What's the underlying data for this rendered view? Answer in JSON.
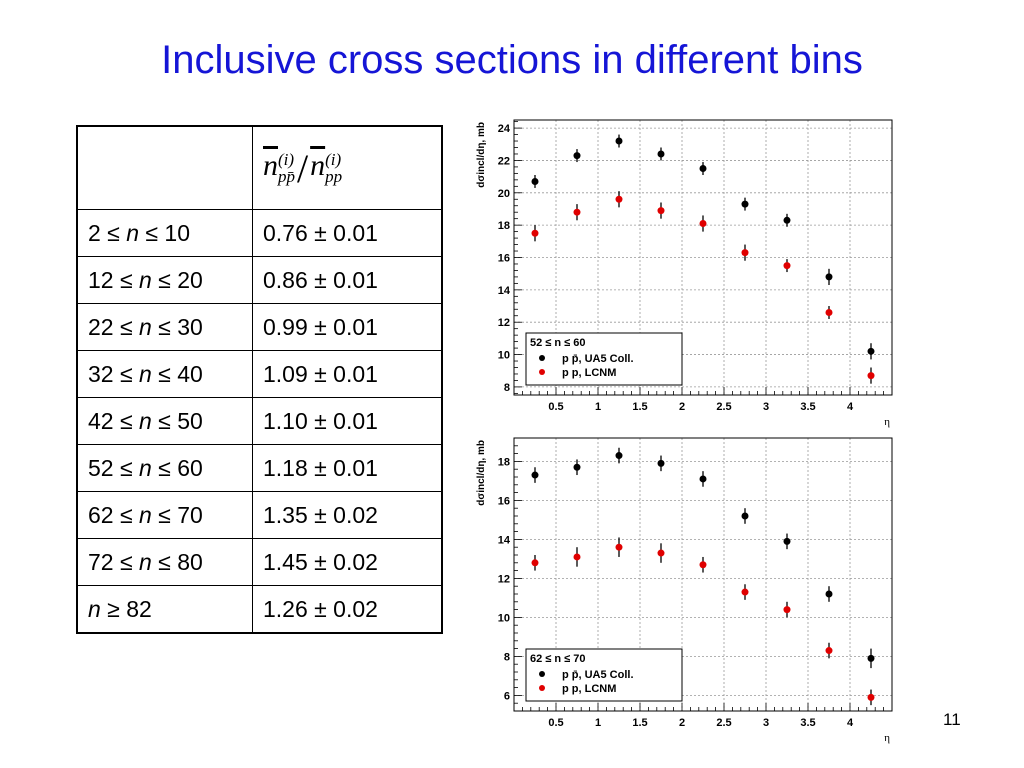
{
  "slide": {
    "title": "Inclusive cross sections in different bins",
    "page_number": "11",
    "title_color": "#1515d6"
  },
  "table": {
    "header_ratio": {
      "n": "n",
      "sub1": "pp̄",
      "sub2": "pp",
      "sup": "(i)",
      "slash": "/"
    },
    "rows": [
      {
        "lo": "2 ≤ ",
        "var": "n",
        "hi": " ≤ 10",
        "value": "0.76 ± 0.01"
      },
      {
        "lo": "12 ≤ ",
        "var": "n",
        "hi": " ≤ 20",
        "value": "0.86 ± 0.01"
      },
      {
        "lo": "22 ≤ ",
        "var": "n",
        "hi": " ≤ 30",
        "value": "0.99 ± 0.01"
      },
      {
        "lo": "32 ≤ ",
        "var": "n",
        "hi": " ≤ 40",
        "value": "1.09 ± 0.01"
      },
      {
        "lo": "42 ≤ ",
        "var": "n",
        "hi": " ≤ 50",
        "value": "1.10 ± 0.01"
      },
      {
        "lo": "52 ≤ ",
        "var": "n",
        "hi": " ≤ 60",
        "value": "1.18 ± 0.01"
      },
      {
        "lo": "62 ≤ ",
        "var": "n",
        "hi": " ≤ 70",
        "value": "1.35 ± 0.02"
      },
      {
        "lo": "72 ≤ ",
        "var": "n",
        "hi": " ≤ 80",
        "value": "1.45 ± 0.02"
      },
      {
        "lo": "",
        "var": "n",
        "hi": " ≥ 82",
        "value": "1.26 ± 0.02"
      }
    ]
  },
  "chart_data": [
    {
      "type": "scatter",
      "xlabel": "η",
      "ylabel": "dσincl/dη, mb",
      "xlim": [
        0,
        4.5
      ],
      "ylim": [
        7.5,
        24.5
      ],
      "xticks": [
        "0.5",
        "1",
        "1.5",
        "2",
        "2.5",
        "3",
        "3.5",
        "4"
      ],
      "yticks": [
        "8",
        "10",
        "12",
        "14",
        "16",
        "18",
        "20",
        "22",
        "24"
      ],
      "grid": true,
      "legend_position": "bottom-left",
      "legend_title": "52 ≤ n ≤ 60",
      "series": [
        {
          "name": "p p̄, UA5 Coll.",
          "color": "#000000",
          "x": [
            0.25,
            0.75,
            1.25,
            1.75,
            2.25,
            2.75,
            3.25,
            3.75,
            4.25
          ],
          "y": [
            20.7,
            22.3,
            23.2,
            22.4,
            21.5,
            19.3,
            18.3,
            14.8,
            10.2
          ],
          "err": [
            0.4,
            0.4,
            0.4,
            0.4,
            0.4,
            0.4,
            0.4,
            0.5,
            0.5
          ]
        },
        {
          "name": "p p, LCNM",
          "color": "#e00000",
          "x": [
            0.25,
            0.75,
            1.25,
            1.75,
            2.25,
            2.75,
            3.25,
            3.75,
            4.25
          ],
          "y": [
            17.5,
            18.8,
            19.6,
            18.9,
            18.1,
            16.3,
            15.5,
            12.6,
            8.7
          ],
          "err": [
            0.5,
            0.5,
            0.5,
            0.5,
            0.5,
            0.5,
            0.4,
            0.4,
            0.5
          ]
        }
      ]
    },
    {
      "type": "scatter",
      "xlabel": "η",
      "ylabel": "dσincl/dη, mb",
      "xlim": [
        0,
        4.5
      ],
      "ylim": [
        5.2,
        19.2
      ],
      "xticks": [
        "0.5",
        "1",
        "1.5",
        "2",
        "2.5",
        "3",
        "3.5",
        "4"
      ],
      "yticks": [
        "6",
        "8",
        "10",
        "12",
        "14",
        "16",
        "18"
      ],
      "grid": true,
      "legend_position": "bottom-left",
      "legend_title": "62 ≤ n ≤ 70",
      "series": [
        {
          "name": "p p̄, UA5 Coll.",
          "color": "#000000",
          "x": [
            0.25,
            0.75,
            1.25,
            1.75,
            2.25,
            2.75,
            3.25,
            3.75,
            4.25
          ],
          "y": [
            17.3,
            17.7,
            18.3,
            17.9,
            17.1,
            15.2,
            13.9,
            11.2,
            7.9
          ],
          "err": [
            0.4,
            0.4,
            0.4,
            0.4,
            0.4,
            0.4,
            0.4,
            0.4,
            0.5
          ]
        },
        {
          "name": "p p, LCNM",
          "color": "#e00000",
          "x": [
            0.25,
            0.75,
            1.25,
            1.75,
            2.25,
            2.75,
            3.25,
            3.75,
            4.25
          ],
          "y": [
            12.8,
            13.1,
            13.6,
            13.3,
            12.7,
            11.3,
            10.4,
            8.3,
            5.9
          ],
          "err": [
            0.4,
            0.5,
            0.5,
            0.5,
            0.4,
            0.4,
            0.4,
            0.4,
            0.4
          ]
        }
      ]
    }
  ]
}
